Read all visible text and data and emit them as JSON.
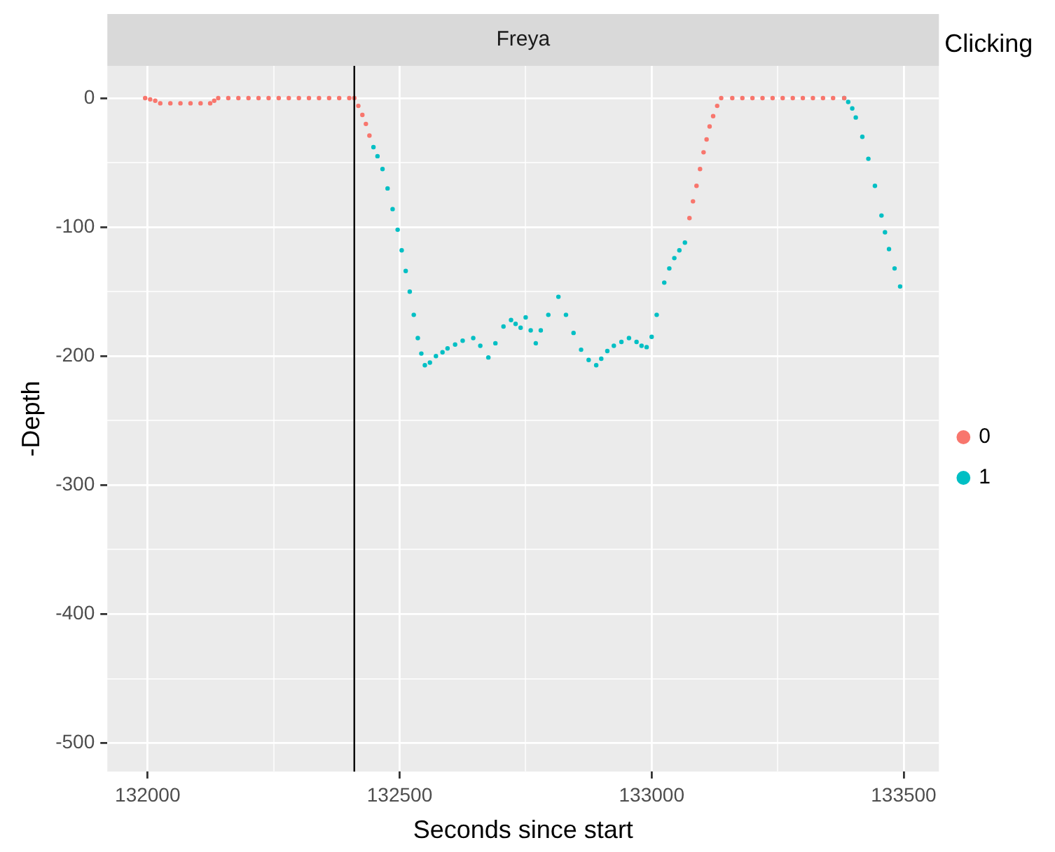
{
  "chart_data": {
    "type": "scatter",
    "title": "Freya",
    "xlabel": "Seconds since start",
    "ylabel": "-Depth",
    "legend_title": "Clicking",
    "legend": "right",
    "marker": "circle",
    "grid": true,
    "xlim": [
      131920,
      133570
    ],
    "ylim": [
      -522,
      25
    ],
    "xticks": [
      132000,
      {
        "value": 132250,
        "label": null
      },
      132500,
      {
        "value": 132750,
        "label": null
      },
      133000,
      {
        "value": 133250,
        "label": null
      },
      133500
    ],
    "yticks": [
      {
        "value": -500,
        "label": "-500"
      },
      {
        "value": -450,
        "label": null
      },
      {
        "value": -400,
        "label": "-400"
      },
      {
        "value": -350,
        "label": null
      },
      {
        "value": -300,
        "label": "-300"
      },
      {
        "value": -250,
        "label": null
      },
      {
        "value": -200,
        "label": "-200"
      },
      {
        "value": -150,
        "label": null
      },
      {
        "value": -100,
        "label": "-100"
      },
      {
        "value": -50,
        "label": null
      },
      0
    ],
    "ref_lines": [
      {
        "axis": "x",
        "value": 132410,
        "color": "#000000"
      }
    ],
    "series": [
      {
        "name": "0",
        "color": "#f8766d",
        "x": [
          131995,
          132005,
          132015,
          132025,
          132045,
          132065,
          132085,
          132105,
          132124,
          132132,
          132140,
          132160,
          132180,
          132200,
          132220,
          132240,
          132260,
          132280,
          132300,
          132320,
          132340,
          132360,
          132380,
          132400,
          132410,
          132418,
          132426,
          132433,
          132440,
          133075,
          133082,
          133089,
          133096,
          133103,
          133109,
          133115,
          133122,
          133130,
          133138,
          133160,
          133180,
          133200,
          133220,
          133240,
          133260,
          133280,
          133300,
          133320,
          133340,
          133360,
          133382
        ],
        "values": [
          0,
          -1,
          -2,
          -4,
          -4,
          -4,
          -4,
          -4,
          -4,
          -2,
          0,
          0,
          0,
          0,
          0,
          0,
          0,
          0,
          0,
          0,
          0,
          0,
          0,
          0,
          0,
          -6,
          -13,
          -20,
          -29,
          -93,
          -80,
          -68,
          -55,
          -42,
          -32,
          -22,
          -14,
          -6,
          0,
          0,
          0,
          0,
          0,
          0,
          0,
          0,
          0,
          0,
          0,
          0,
          0
        ]
      },
      {
        "name": "1",
        "color": "#00bfc4",
        "x": [
          132448,
          132456,
          132466,
          132476,
          132486,
          132496,
          132504,
          132512,
          132520,
          132528,
          132536,
          132543,
          132550,
          132560,
          132572,
          132585,
          132595,
          132610,
          132625,
          132646,
          132660,
          132676,
          132690,
          132706,
          132721,
          132730,
          132740,
          132750,
          132760,
          132770,
          132780,
          132795,
          132815,
          132830,
          132845,
          132860,
          132875,
          132890,
          132900,
          132912,
          132925,
          132940,
          132955,
          132970,
          132980,
          132990,
          133000,
          133010,
          133025,
          133035,
          133045,
          133055,
          133066,
          133382,
          133390,
          133398,
          133405,
          133418,
          133430,
          133443,
          133456,
          133463,
          133471,
          133482,
          133493
        ],
        "values": [
          -38,
          -45,
          -55,
          -70,
          -86,
          -102,
          -118,
          -134,
          -150,
          -168,
          -186,
          -198,
          -207,
          -205,
          -200,
          -197,
          -194,
          -191,
          -188,
          -186,
          -192,
          -201,
          -190,
          -177,
          -172,
          -175,
          -178,
          -170,
          -180,
          -190,
          -180,
          -168,
          -154,
          -168,
          -182,
          -195,
          -203,
          -207,
          -202,
          -196,
          -192,
          -189,
          -186,
          -189,
          -192,
          -193,
          -185,
          -168,
          -143,
          -132,
          -124,
          -118,
          -112,
          0,
          -3,
          -8,
          -15,
          -30,
          -47,
          -68,
          -91,
          -104,
          -117,
          -132,
          -146
        ]
      }
    ]
  }
}
